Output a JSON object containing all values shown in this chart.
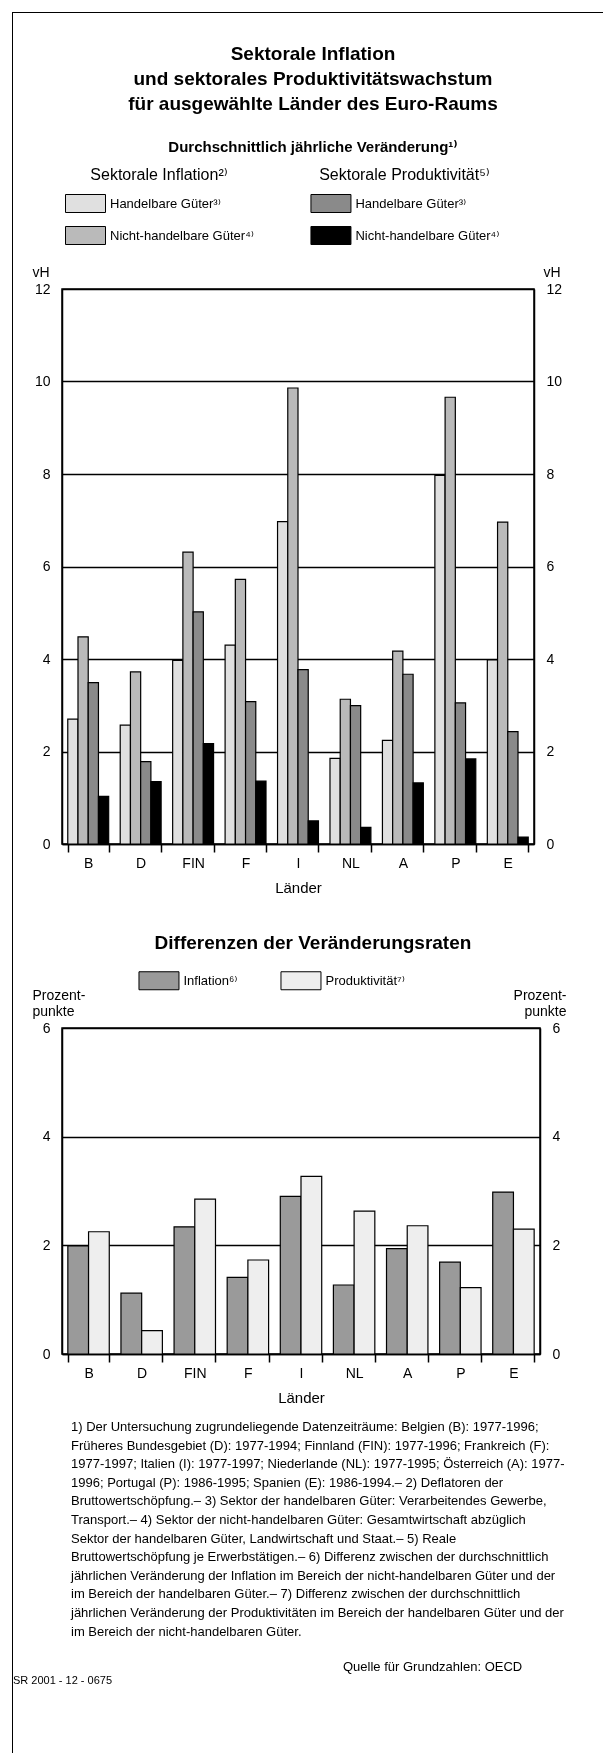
{
  "chart_data": [
    {
      "type": "bar",
      "title": "Sektorale Inflation\nund sektorales Produktivitätswachstum\nfür ausgewählte Länder des Euro-Raums",
      "subtitle": "Durchschnittlich jährliche Veränderung¹⁾",
      "xlabel": "Länder",
      "ylabel": "vH",
      "y2label": "vH",
      "categories": [
        "B",
        "D",
        "FIN",
        "F",
        "I",
        "NL",
        "A",
        "P",
        "E"
      ],
      "series": [
        {
          "name": "Handelbare Güter³⁾",
          "color": "#e0e0e0",
          "values": [
            2.7,
            2.57,
            3.97,
            4.3,
            6.97,
            1.85,
            2.24,
            7.97,
            3.98
          ]
        },
        {
          "name": "Nicht-handelbare Güter⁴⁾",
          "color": "#bababa",
          "values": [
            4.48,
            3.72,
            6.31,
            5.72,
            9.86,
            3.13,
            4.17,
            9.66,
            6.96
          ]
        },
        {
          "name": "Handelbare Güter³⁾",
          "color": "#8a8a8a",
          "values": [
            3.49,
            1.78,
            5.02,
            3.08,
            3.77,
            2.99,
            3.67,
            3.05,
            2.43
          ]
        },
        {
          "name": "Nicht-handelbare Güter⁴⁾",
          "color": "#000000",
          "values": [
            1.03,
            1.35,
            2.17,
            1.36,
            0.5,
            0.36,
            1.32,
            1.84,
            0.15
          ]
        }
      ],
      "annotations": [
        "Sektorale Inflation²⁾",
        "Sektorale Produktivität⁵⁾"
      ],
      "ylim": [
        0,
        12
      ],
      "yticks": [
        0,
        2,
        4,
        6,
        8,
        10,
        12
      ],
      "y2lim": [
        0,
        12
      ],
      "y2ticks": [
        0,
        2,
        4,
        6,
        8,
        10,
        12
      ],
      "grid": "y",
      "legend": "top"
    },
    {
      "type": "bar",
      "title": "Differenzen der Veränderungsraten",
      "xlabel": "Länder",
      "ylabel": "Prozent-punkte",
      "y2label": "Prozent-punkte",
      "categories": [
        "B",
        "D",
        "FIN",
        "F",
        "I",
        "NL",
        "A",
        "P",
        "E"
      ],
      "series": [
        {
          "name": "Inflation⁶⁾",
          "color": "#9a9a9a",
          "values": [
            1.99,
            1.12,
            2.34,
            1.41,
            2.9,
            1.27,
            1.94,
            1.69,
            2.98
          ]
        },
        {
          "name": "Produktivität⁷⁾",
          "color": "#eeeeee",
          "values": [
            2.25,
            0.43,
            2.85,
            1.73,
            3.27,
            2.63,
            2.36,
            1.22,
            2.3
          ]
        }
      ],
      "annotations": [
        "1) Der Untersuchung zugrundeliegende Datenzeiträume: Belgien (B): 1977-1996; Früheres Bundesgebiet (D): 1977-1994;  Finnland (FIN): 1977-1996; Frankreich (F): 1977-1997; Italien (I): 1977-1997; Niederlande (NL): 1977-1995; Österreich (A): 1977-1996; Portugal (P): 1986-1995; Spanien (E): 1986-1994.– 2) Deflatoren der Bruttowertschöpfung.– 3) Sektor der handelbaren Güter: Verarbeitendes Gewerbe, Transport.– 4) Sektor der nicht-handelbaren Güter: Gesamtwirtschaft abzüglich Sektor der handelbaren Güter, Landwirtschaft und Staat.– 5) Reale Bruttowertschöpfung je Erwerbstätigen.– 6) Differenz zwischen der durchschnittlich jährlichen Veränderung der Inflation im Bereich der nicht-handelbaren Güter und der im Bereich der handelbaren Güter.– 7) Differenz zwischen der durchschnittlich jährlichen Veränderung der Produktivitäten im Bereich der handelbaren Güter und der im Bereich der nicht-handelbaren Güter.",
        "Quelle für Grundzahlen: OECD",
        "SR 2001 - 12 - 0675"
      ],
      "ylim": [
        0,
        6
      ],
      "yticks": [
        0,
        2,
        4,
        6
      ],
      "y2lim": [
        0,
        6
      ],
      "y2ticks": [
        0,
        2,
        4,
        6
      ],
      "grid": "y",
      "legend": "top"
    }
  ]
}
